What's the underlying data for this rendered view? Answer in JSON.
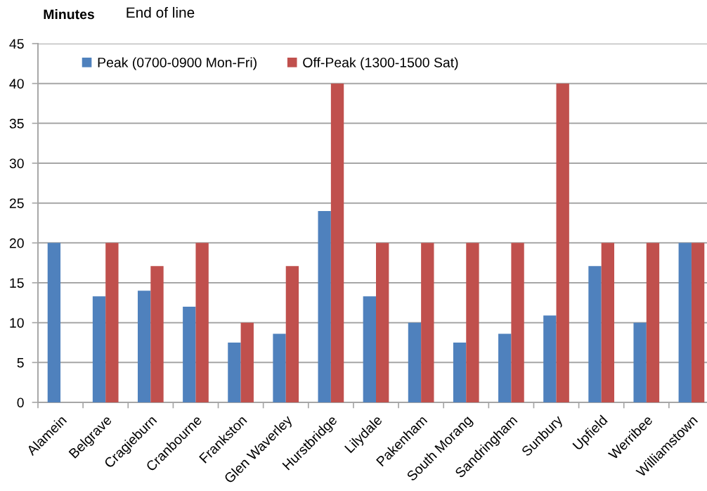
{
  "chart_data": {
    "type": "bar",
    "xlabel": "End of line",
    "ylabel": "Minutes",
    "categories": [
      "Alamein",
      "Belgrave",
      "Cragieburn",
      "Cranbourne",
      "Frankston",
      "Glen Waverley",
      "Hurstbridge",
      "Lilydale",
      "Pakenham",
      "South Morang",
      "Sandringham",
      "Sunbury",
      "Upfield",
      "Werribee",
      "Williamstown"
    ],
    "series": [
      {
        "name": "Peak (0700-0900 Mon-Fri)",
        "color": "#4f81bd",
        "values": [
          20,
          13.3,
          14,
          12,
          7.5,
          8.6,
          24,
          13.3,
          10,
          7.5,
          8.6,
          10.9,
          17.1,
          10,
          20
        ]
      },
      {
        "name": "Off-Peak (1300-1500 Sat)",
        "color": "#c0504d",
        "values": [
          null,
          20,
          17.1,
          20,
          10,
          17.1,
          40,
          20,
          20,
          20,
          20,
          40,
          20,
          20,
          20
        ]
      }
    ],
    "ylim": [
      0,
      45
    ],
    "yticks": [
      0,
      5,
      10,
      15,
      20,
      25,
      30,
      35,
      40,
      45
    ],
    "grid": "y",
    "legend": "top left"
  }
}
